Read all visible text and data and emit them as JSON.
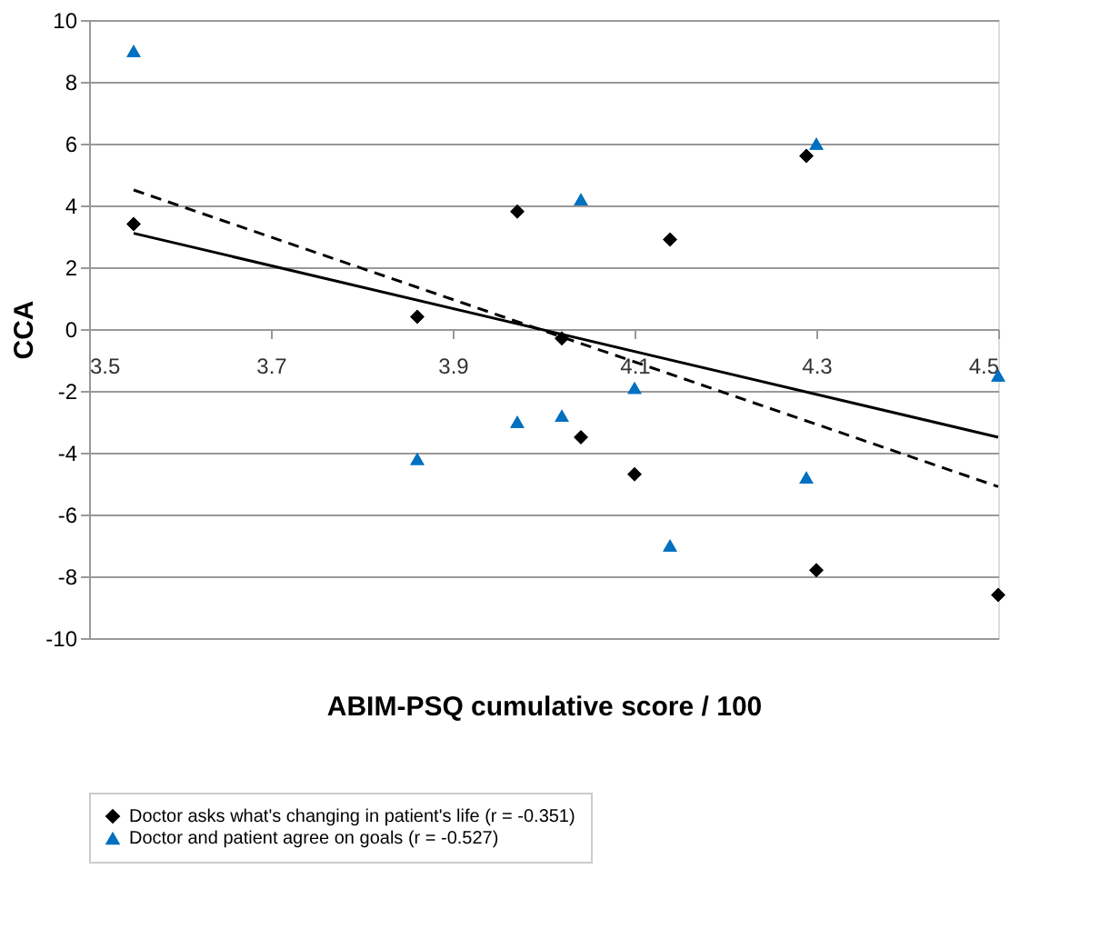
{
  "chart_data": {
    "type": "scatter",
    "xlabel": "ABIM-PSQ cumulative score / 100",
    "ylabel": "CCA",
    "xlim": [
      3.5,
      4.5
    ],
    "xticks": [
      3.5,
      3.7,
      3.9,
      4.1,
      4.3,
      4.5
    ],
    "ylim": [
      -10,
      10
    ],
    "yticks": [
      -10,
      -8,
      -6,
      -4,
      -2,
      0,
      2,
      4,
      6,
      8,
      10
    ],
    "grid": "y",
    "legend": "bottom",
    "series": [
      {
        "name": "Doctor asks what's changing in patient's life (r = -0.351)",
        "type": "scatter",
        "marker": "diamond",
        "color": "#000000",
        "x": [
          3.549,
          3.861,
          3.971,
          4.02,
          4.041,
          4.139,
          4.1,
          4.289,
          4.3,
          4.5
        ],
        "values": [
          3.4,
          0.4,
          3.8,
          -0.3,
          -3.5,
          2.9,
          -4.7,
          5.6,
          -7.8,
          -8.6
        ]
      },
      {
        "name": "Doctor and patient agree on goals (r = -0.527)",
        "type": "scatter",
        "marker": "triangle",
        "color": "#0070c0",
        "x": [
          3.549,
          3.861,
          3.971,
          4.02,
          4.041,
          4.1,
          4.139,
          4.289,
          4.3,
          4.5
        ],
        "values": [
          9.0,
          -4.2,
          -3.0,
          -2.8,
          4.2,
          -1.9,
          -7.0,
          -4.8,
          6.0,
          -1.5
        ]
      },
      {
        "type": "line",
        "line_style": "solid",
        "color": "#000000",
        "x": [
          3.549,
          4.5
        ],
        "values": [
          3.1,
          -3.5
        ]
      },
      {
        "type": "line",
        "line_style": "dashed",
        "color": "#000000",
        "x": [
          3.549,
          4.5
        ],
        "values": [
          4.5,
          -5.1
        ]
      }
    ]
  }
}
